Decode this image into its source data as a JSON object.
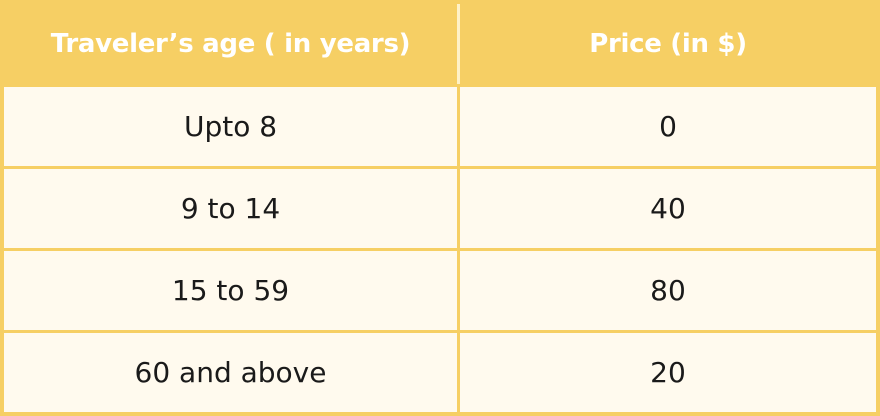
{
  "table": {
    "headers": [
      "Traveler’s age ( in years)",
      "Price (in $)"
    ],
    "rows": [
      {
        "age": "Upto 8",
        "price": "0"
      },
      {
        "age": "9 to 14",
        "price": "40"
      },
      {
        "age": "15 to 59",
        "price": "80"
      },
      {
        "age": "60 and above",
        "price": "20"
      }
    ]
  },
  "colors": {
    "header_bg": "#f6cf64",
    "header_text": "#ffffff",
    "cell_bg": "#fffaee",
    "border": "#f6cf64"
  }
}
